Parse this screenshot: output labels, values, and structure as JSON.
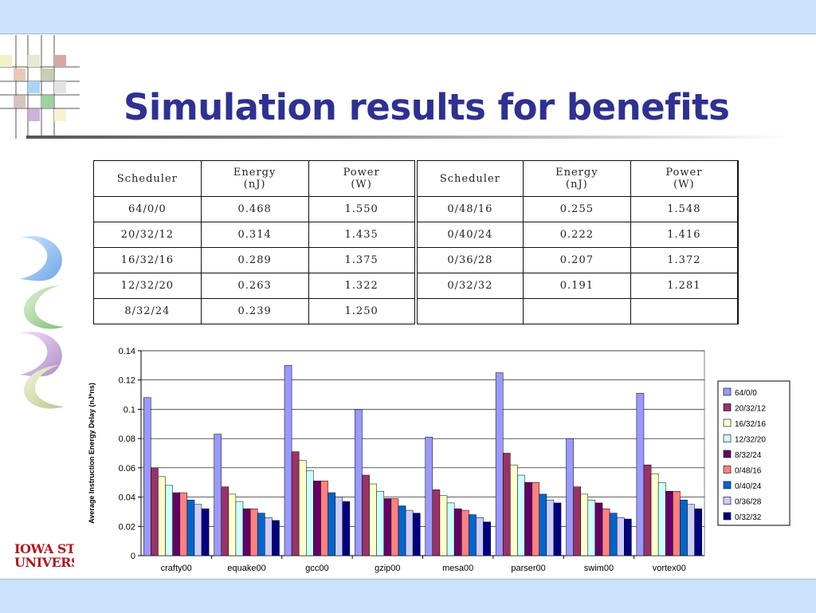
{
  "slide": {
    "title": "Simulation results for benefits",
    "logo_line1": "IOWA STA",
    "logo_line2": "UNIVERSI"
  },
  "table": {
    "headers": [
      "Scheduler",
      "Energy\n(nJ)",
      "Power\n(W)",
      "Scheduler",
      "Energy\n(nJ)",
      "Power\n(W)"
    ],
    "rows": [
      [
        "64/0/0",
        "0.468",
        "1.550",
        "0/48/16",
        "0.255",
        "1.548"
      ],
      [
        "20/32/12",
        "0.314",
        "1.435",
        "0/40/24",
        "0.222",
        "1.416"
      ],
      [
        "16/32/16",
        "0.289",
        "1.375",
        "0/36/28",
        "0.207",
        "1.372"
      ],
      [
        "12/32/20",
        "0.263",
        "1.322",
        "0/32/32",
        "0.191",
        "1.281"
      ],
      [
        "8/32/24",
        "0.239",
        "1.250",
        "",
        "",
        ""
      ]
    ]
  },
  "chart_data": {
    "type": "bar",
    "title": "",
    "xlabel": "",
    "ylabel": "Average Instruction Energy Delay (nJ*ns)",
    "ylim": [
      0,
      0.14
    ],
    "yticks": [
      "0",
      "0.02",
      "0.04",
      "0.06",
      "0.08",
      "0.1",
      "0.12",
      "0.14"
    ],
    "grid": true,
    "legend": "right",
    "categories": [
      "crafty00",
      "equake00",
      "gcc00",
      "gzip00",
      "mesa00",
      "parser00",
      "swim00",
      "vortex00"
    ],
    "series": [
      {
        "name": "64/0/0",
        "color": "#9999ff",
        "values": [
          0.108,
          0.083,
          0.13,
          0.1,
          0.081,
          0.125,
          0.08,
          0.111
        ]
      },
      {
        "name": "20/32/12",
        "color": "#993366",
        "values": [
          0.06,
          0.047,
          0.071,
          0.055,
          0.045,
          0.07,
          0.047,
          0.062
        ]
      },
      {
        "name": "16/32/16",
        "color": "#ffffcc",
        "values": [
          0.054,
          0.042,
          0.065,
          0.049,
          0.041,
          0.062,
          0.042,
          0.056
        ]
      },
      {
        "name": "12/32/20",
        "color": "#ccffff",
        "values": [
          0.048,
          0.037,
          0.058,
          0.044,
          0.036,
          0.055,
          0.038,
          0.05
        ]
      },
      {
        "name": "8/32/24",
        "color": "#660066",
        "values": [
          0.043,
          0.032,
          0.051,
          0.039,
          0.032,
          0.05,
          0.036,
          0.044
        ]
      },
      {
        "name": "0/48/16",
        "color": "#ff8080",
        "values": [
          0.043,
          0.032,
          0.051,
          0.039,
          0.031,
          0.05,
          0.032,
          0.044
        ]
      },
      {
        "name": "0/40/24",
        "color": "#0066cc",
        "values": [
          0.038,
          0.029,
          0.043,
          0.034,
          0.028,
          0.042,
          0.029,
          0.038
        ]
      },
      {
        "name": "0/36/28",
        "color": "#ccccff",
        "values": [
          0.035,
          0.026,
          0.04,
          0.031,
          0.026,
          0.038,
          0.026,
          0.035
        ]
      },
      {
        "name": "0/32/32",
        "color": "#000080",
        "values": [
          0.032,
          0.024,
          0.037,
          0.029,
          0.023,
          0.036,
          0.025,
          0.032
        ]
      }
    ]
  }
}
